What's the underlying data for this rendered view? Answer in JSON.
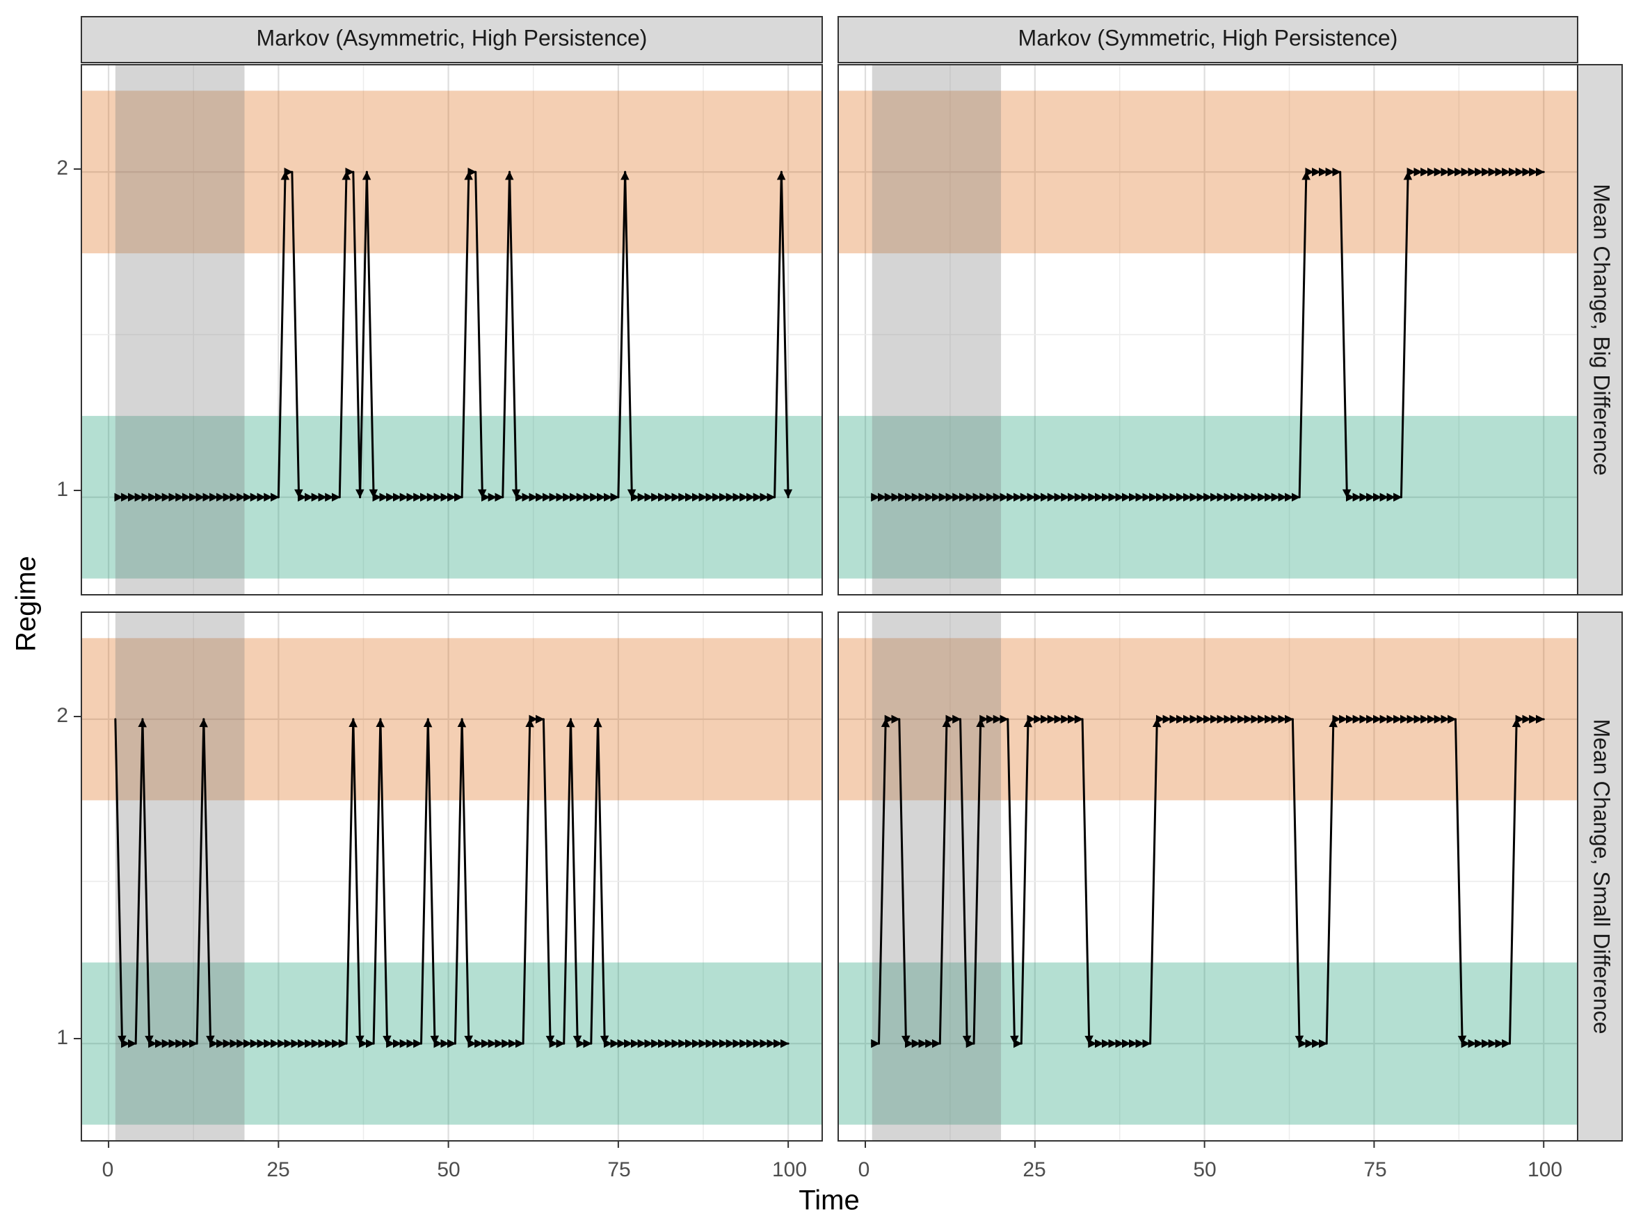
{
  "chart_data": {
    "type": "line",
    "xlabel": "Time",
    "ylabel": "Regime",
    "xlim": [
      -4,
      105
    ],
    "ylim": [
      0.7,
      2.33
    ],
    "x_ticks": [
      0,
      25,
      50,
      75,
      100
    ],
    "x_tick_labels": [
      "0",
      "25",
      "50",
      "75",
      "100"
    ],
    "y_ticks": [
      1,
      2
    ],
    "y_tick_labels": [
      "1",
      "2"
    ],
    "grid": true,
    "col_strips": [
      "Markov (Asymmetric, High Persistence)",
      "Markov (Symmetric, High Persistence)"
    ],
    "row_strips": [
      "Mean Change, Big Difference",
      "Mean Change, Small Difference"
    ],
    "bands": [
      {
        "regime": 1,
        "y_range": [
          0.75,
          1.25
        ],
        "color": "#1b9e77",
        "opacity": 0.33
      },
      {
        "regime": 2,
        "y_range": [
          1.75,
          2.25
        ],
        "color": "#d95f02",
        "opacity": 0.3
      }
    ],
    "burn_in_shade": {
      "x_range": [
        1,
        20
      ],
      "color": "#808080",
      "opacity": 0.33
    },
    "panels": [
      {
        "row": 0,
        "col": 0,
        "regime2_runs": [
          [
            26,
            27
          ],
          [
            35,
            36
          ],
          [
            38,
            38
          ],
          [
            53,
            54
          ],
          [
            59,
            59
          ],
          [
            76,
            76
          ],
          [
            99,
            99
          ]
        ]
      },
      {
        "row": 0,
        "col": 1,
        "regime2_runs": [
          [
            65,
            70
          ],
          [
            80,
            100
          ]
        ]
      },
      {
        "row": 1,
        "col": 0,
        "regime2_runs": [
          [
            1,
            1
          ],
          [
            5,
            5
          ],
          [
            14,
            14
          ],
          [
            36,
            36
          ],
          [
            40,
            40
          ],
          [
            47,
            47
          ],
          [
            52,
            52
          ],
          [
            62,
            64
          ],
          [
            68,
            68
          ],
          [
            72,
            72
          ]
        ]
      },
      {
        "row": 1,
        "col": 1,
        "regime2_runs": [
          [
            3,
            5
          ],
          [
            12,
            14
          ],
          [
            17,
            21
          ],
          [
            24,
            32
          ],
          [
            43,
            63
          ],
          [
            69,
            87
          ],
          [
            96,
            100
          ]
        ]
      }
    ]
  }
}
